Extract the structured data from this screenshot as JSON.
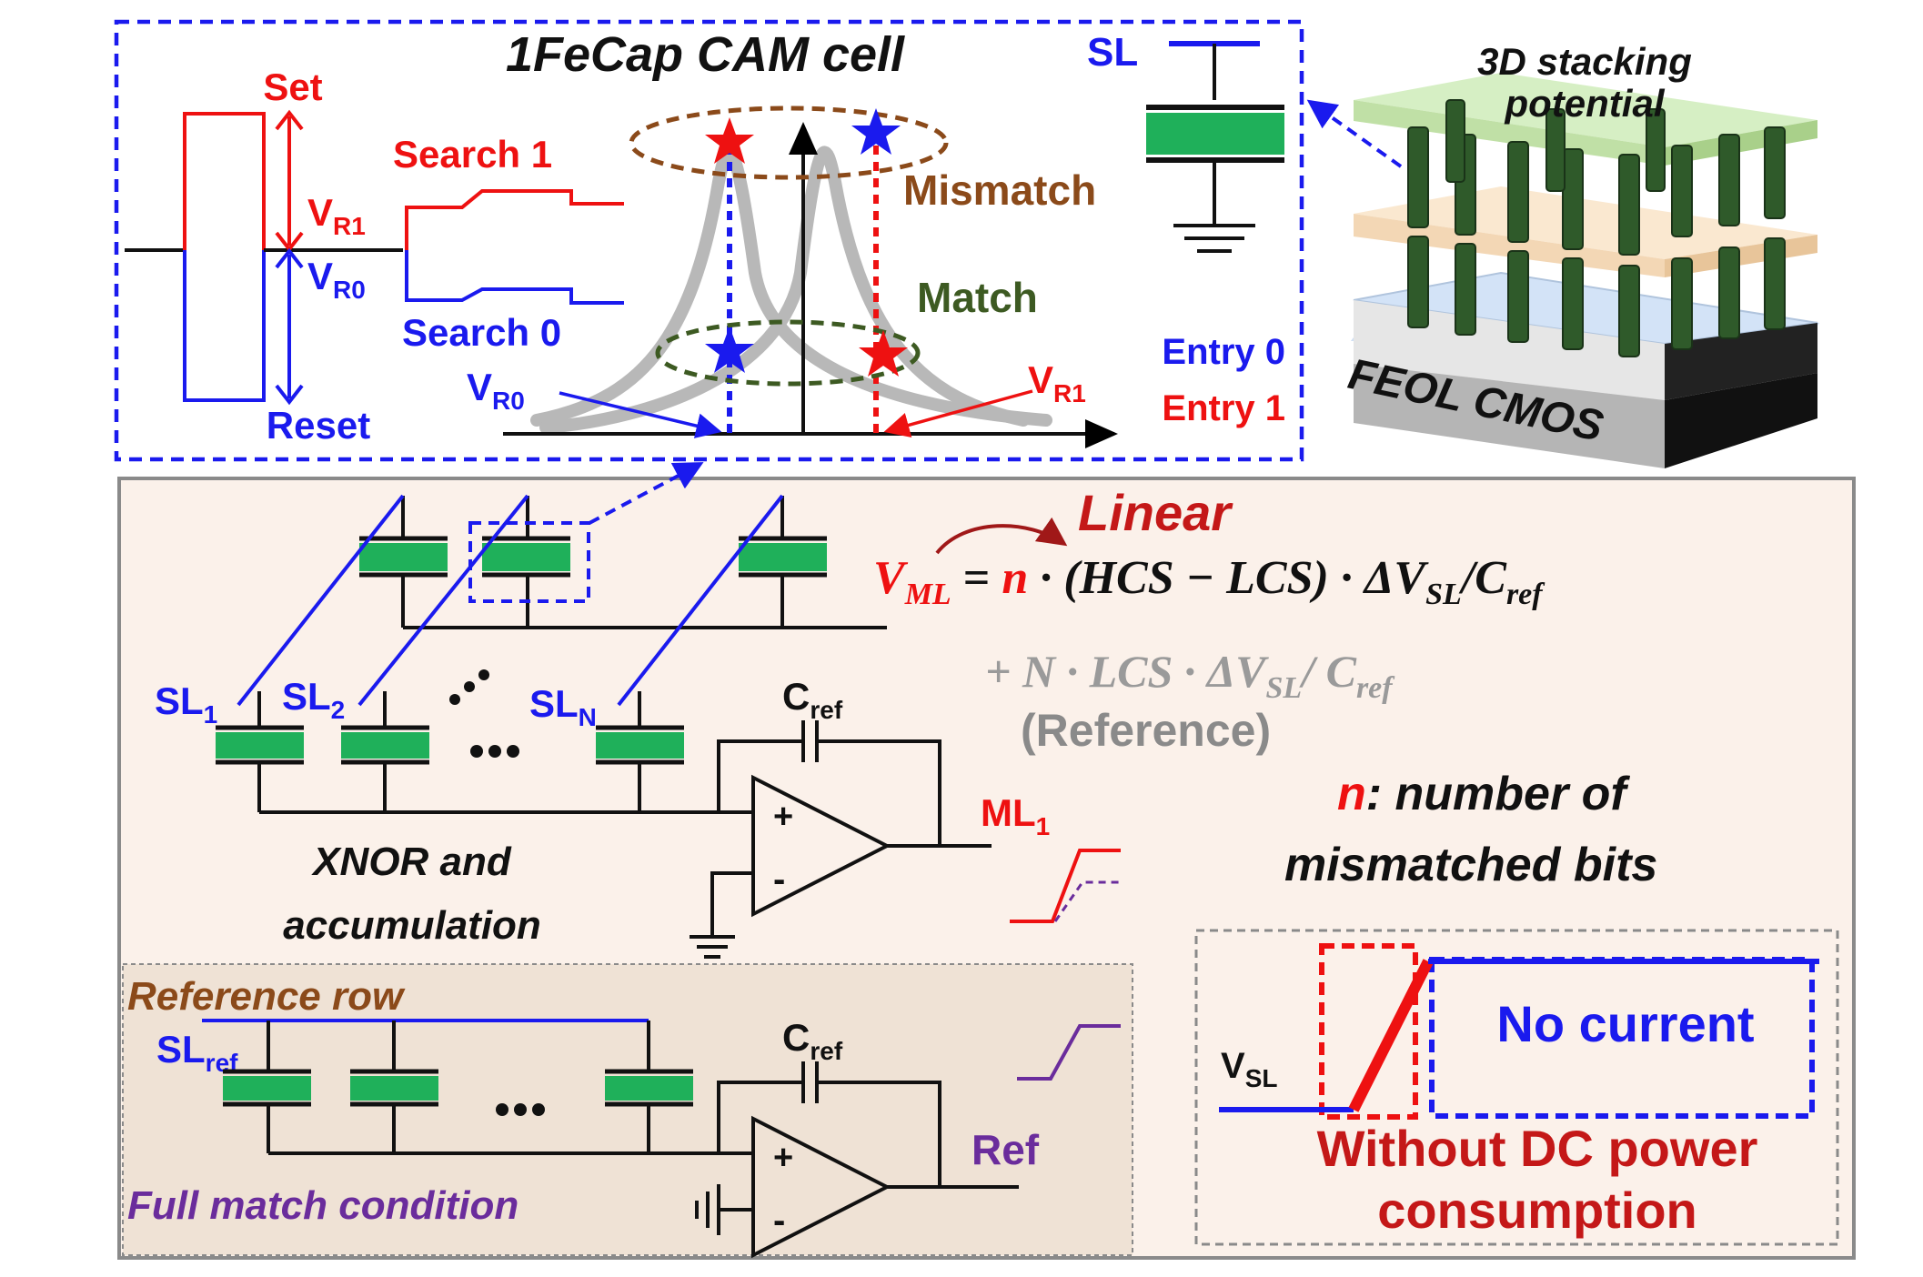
{
  "cell": {
    "title": "1FeCap CAM cell",
    "set": "Set",
    "reset": "Reset",
    "vr1": "V",
    "vr1_sub": "R1",
    "vr0": "V",
    "vr0_sub": "R0",
    "search1": "Search 1",
    "search0": "Search 0",
    "mismatch": "Mismatch",
    "match": "Match",
    "vr0_arrow": "V",
    "vr0_arrow_sub": "R0",
    "vr1_arrow": "V",
    "vr1_arrow_sub": "R1",
    "sl": "SL",
    "entry0": "Entry 0",
    "entry1": "Entry 1"
  },
  "stack": {
    "label_line1": "3D stacking",
    "label_line2": "potential",
    "feol": "FEOL CMOS"
  },
  "array": {
    "sl1": "SL",
    "sl1_sub": "1",
    "sl2": "SL",
    "sl2_sub": "2",
    "sln": "SL",
    "sln_sub": "N",
    "cref": "C",
    "cref_sub": "ref",
    "ml1": "ML",
    "ml1_sub": "1",
    "plus": "+",
    "minus": "-",
    "xnor_line1": "XNOR and",
    "xnor_line2": "accumulation"
  },
  "equation": {
    "linear": "Linear",
    "v": "V",
    "v_sub": "ML",
    "eq": " = ",
    "n": "n",
    "rest1": " · (HCS − LCS) · ΔV",
    "sl_sub": "SL",
    "rest2": "/C",
    "ref_sub": "ref",
    "line2a": "+ N · LCS · ΔV",
    "line2_sub": "SL",
    "line2b": "/ C",
    "line2_ref_sub": "ref",
    "reference": "(Reference)",
    "n_label": "n",
    "n_desc1": ": number of",
    "n_desc2": "mismatched bits"
  },
  "ref_row": {
    "title": "Reference row",
    "slref": "SL",
    "slref_sub": "ref",
    "cref": "C",
    "cref_sub": "ref",
    "ref": "Ref",
    "plus": "+",
    "minus": "-",
    "full_match": "Full match condition"
  },
  "dc_box": {
    "vsl": "V",
    "vsl_sub": "SL",
    "no_current": "No current",
    "line1": "Without DC power",
    "line2": "consumption"
  },
  "colors": {
    "red": "#ee1111",
    "blue": "#1a1aee",
    "brown": "#8b4a1a",
    "olive": "#3d5a22",
    "purple": "#6a2c9c",
    "green_cap": "#1fb05a",
    "gray_text": "#9a9a9a",
    "dark_red": "#c41818",
    "panel_bg": "#fbf1ea",
    "ref_bg": "#efe2d5"
  }
}
